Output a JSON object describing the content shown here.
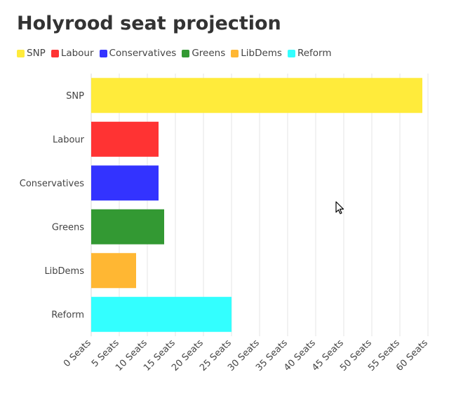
{
  "chart_data": {
    "type": "bar",
    "orientation": "horizontal",
    "title": "Holyrood seat projection",
    "categories": [
      "SNP",
      "Labour",
      "Conservatives",
      "Greens",
      "LibDems",
      "Reform"
    ],
    "values": [
      59,
      12,
      12,
      13,
      8,
      25
    ],
    "colors": [
      "#FFEB3B",
      "#FF3333",
      "#3333FF",
      "#339933",
      "#FFB733",
      "#33FFFF"
    ],
    "xlim": [
      0,
      60
    ],
    "xticks": [
      0,
      5,
      10,
      15,
      20,
      25,
      30,
      35,
      40,
      45,
      50,
      55,
      60
    ],
    "xtick_suffix": " Seats",
    "grid": true,
    "legend_position": "top-left"
  }
}
